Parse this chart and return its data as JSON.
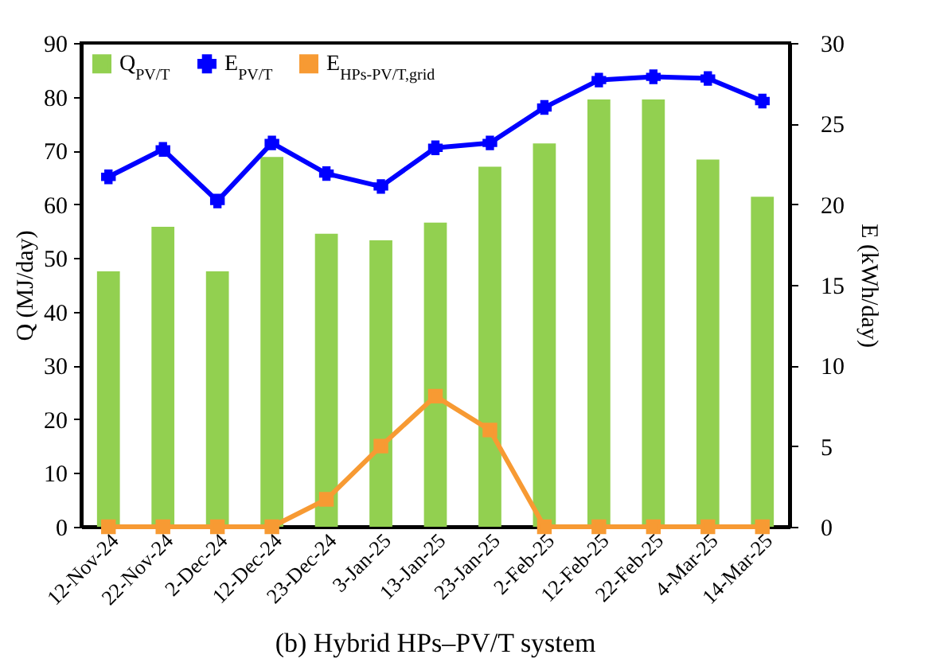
{
  "chart_data": {
    "type": "bar",
    "title": "(b) Hybrid HPs–PV/T system",
    "xlabel": null,
    "ylabel": "Q (MJ/day)",
    "y2label": "E (kWh/day)",
    "categories": [
      "12-Nov-24",
      "22-Nov-24",
      "2-Dec-24",
      "12-Dec-24",
      "23-Dec-24",
      "3-Jan-25",
      "13-Jan-25",
      "23-Jan-25",
      "2-Feb-25",
      "12-Feb-25",
      "22-Feb-25",
      "4-Mar-25",
      "14-Mar-25"
    ],
    "series": [
      {
        "name": "Q$_{PV/T}$",
        "color": "#92d050",
        "values": [
          47.5,
          55.8,
          47.5,
          68.8,
          54.5,
          53.3,
          56.6,
          67.0,
          71.3,
          79.5,
          79.5,
          68.3,
          61.4
        ]
      },
      {
        "name": "E$_{PV/T}$",
        "type": "line",
        "axis": "y2",
        "marker": "cross",
        "color": "#0000ff",
        "values": [
          21.7,
          23.4,
          20.2,
          23.8,
          21.9,
          21.1,
          23.5,
          23.8,
          26.0,
          27.7,
          27.9,
          27.8,
          26.4
        ]
      },
      {
        "name": "E$_{HPs-PV/T,grid}$",
        "type": "line",
        "axis": "y2",
        "marker": "square",
        "color": "#f79a33",
        "values": [
          0,
          0,
          0,
          0,
          1.7,
          5.0,
          8.1,
          6.0,
          0,
          0,
          0,
          0,
          0
        ]
      }
    ],
    "ylim": [
      0,
      90
    ],
    "yticks": [
      0,
      10,
      20,
      30,
      40,
      50,
      60,
      70,
      80,
      90
    ],
    "y2lim": [
      0,
      30
    ],
    "y2ticks": [
      0,
      5,
      10,
      15,
      20,
      25,
      30
    ],
    "grid": false,
    "legend": "top left"
  }
}
